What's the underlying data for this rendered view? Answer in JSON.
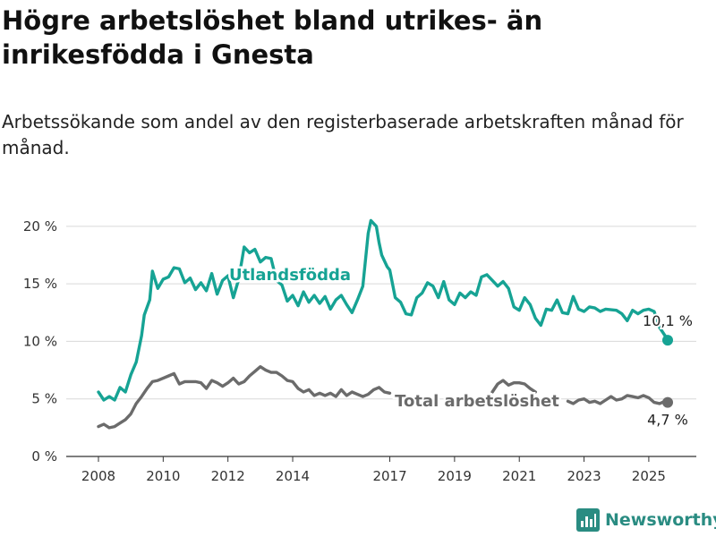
{
  "title": "Högre arbetslöshet bland utrikes- än inrikesfödda i Gnesta",
  "subtitle": "Arbetssökande som andel av den registerbaserade arbetskraften månad för månad.",
  "brand": "Newsworthy",
  "colors": {
    "utlandsfodda": "#16a394",
    "total": "#6b6b6b",
    "grid": "#d9d9d9",
    "brand": "#2a8c82"
  },
  "chart_data": {
    "type": "line",
    "x_start": "2008-01",
    "x_end": "2025-08",
    "ylim": [
      0,
      21
    ],
    "yticks": [
      0,
      5,
      10,
      15,
      20
    ],
    "ytick_labels": [
      "0 %",
      "5 %",
      "10 %",
      "15 %",
      "20 %"
    ],
    "xticks": [
      2008,
      2010,
      2012,
      2014,
      2017,
      2019,
      2021,
      2023,
      2025
    ],
    "xtick_labels": [
      "2008",
      "2010",
      "2012",
      "2014",
      "2017",
      "2019",
      "2021",
      "2023",
      "2025"
    ],
    "grid": true,
    "series": [
      {
        "name": "Utlandsfödda",
        "color": "#16a394",
        "end_label": "10,1 %",
        "points": [
          [
            "2008-01",
            5.6
          ],
          [
            "2008-03",
            4.9
          ],
          [
            "2008-05",
            5.2
          ],
          [
            "2008-07",
            4.9
          ],
          [
            "2008-09",
            6.0
          ],
          [
            "2008-11",
            5.6
          ],
          [
            "2009-01",
            7.1
          ],
          [
            "2009-03",
            8.2
          ],
          [
            "2009-05",
            10.5
          ],
          [
            "2009-06",
            12.3
          ],
          [
            "2009-08",
            13.6
          ],
          [
            "2009-09",
            16.1
          ],
          [
            "2009-11",
            14.6
          ],
          [
            "2010-01",
            15.4
          ],
          [
            "2010-03",
            15.6
          ],
          [
            "2010-05",
            16.4
          ],
          [
            "2010-07",
            16.3
          ],
          [
            "2010-09",
            15.1
          ],
          [
            "2010-11",
            15.5
          ],
          [
            "2011-01",
            14.5
          ],
          [
            "2011-03",
            15.1
          ],
          [
            "2011-05",
            14.4
          ],
          [
            "2011-07",
            15.9
          ],
          [
            "2011-09",
            14.1
          ],
          [
            "2011-11",
            15.3
          ],
          [
            "2012-01",
            15.7
          ],
          [
            "2012-03",
            13.8
          ],
          [
            "2012-05",
            15.4
          ],
          [
            "2012-07",
            18.2
          ],
          [
            "2012-09",
            17.7
          ],
          [
            "2012-11",
            18.0
          ],
          [
            "2013-01",
            16.9
          ],
          [
            "2013-03",
            17.3
          ],
          [
            "2013-05",
            17.2
          ],
          [
            "2013-07",
            15.3
          ],
          [
            "2013-09",
            14.9
          ],
          [
            "2013-11",
            13.5
          ],
          [
            "2014-01",
            14.0
          ],
          [
            "2014-03",
            13.1
          ],
          [
            "2014-05",
            14.3
          ],
          [
            "2014-07",
            13.4
          ],
          [
            "2014-09",
            14.0
          ],
          [
            "2014-11",
            13.3
          ],
          [
            "2015-01",
            13.9
          ],
          [
            "2015-03",
            12.8
          ],
          [
            "2015-05",
            13.6
          ],
          [
            "2015-07",
            14.0
          ],
          [
            "2015-09",
            13.2
          ],
          [
            "2015-11",
            12.5
          ],
          [
            "2016-01",
            13.6
          ],
          [
            "2016-03",
            14.8
          ],
          [
            "2016-05",
            19.4
          ],
          [
            "2016-06",
            20.5
          ],
          [
            "2016-08",
            20.0
          ],
          [
            "2016-09",
            18.6
          ],
          [
            "2016-10",
            17.5
          ],
          [
            "2016-12",
            16.5
          ],
          [
            "2017-01",
            16.2
          ],
          [
            "2017-03",
            13.8
          ],
          [
            "2017-05",
            13.4
          ],
          [
            "2017-07",
            12.4
          ],
          [
            "2017-09",
            12.3
          ],
          [
            "2017-11",
            13.8
          ],
          [
            "2018-01",
            14.2
          ],
          [
            "2018-03",
            15.1
          ],
          [
            "2018-05",
            14.8
          ],
          [
            "2018-07",
            13.8
          ],
          [
            "2018-09",
            15.2
          ],
          [
            "2018-11",
            13.6
          ],
          [
            "2019-01",
            13.2
          ],
          [
            "2019-03",
            14.2
          ],
          [
            "2019-05",
            13.8
          ],
          [
            "2019-07",
            14.3
          ],
          [
            "2019-09",
            14.0
          ],
          [
            "2019-11",
            15.6
          ],
          [
            "2020-01",
            15.8
          ],
          [
            "2020-03",
            15.3
          ],
          [
            "2020-05",
            14.8
          ],
          [
            "2020-07",
            15.2
          ],
          [
            "2020-09",
            14.6
          ],
          [
            "2020-11",
            13.0
          ],
          [
            "2021-01",
            12.7
          ],
          [
            "2021-03",
            13.8
          ],
          [
            "2021-05",
            13.2
          ],
          [
            "2021-07",
            12.0
          ],
          [
            "2021-09",
            11.4
          ],
          [
            "2021-11",
            12.8
          ],
          [
            "2022-01",
            12.7
          ],
          [
            "2022-03",
            13.6
          ],
          [
            "2022-05",
            12.5
          ],
          [
            "2022-07",
            12.4
          ],
          [
            "2022-09",
            13.9
          ],
          [
            "2022-11",
            12.8
          ],
          [
            "2023-01",
            12.6
          ],
          [
            "2023-03",
            13.0
          ],
          [
            "2023-05",
            12.9
          ],
          [
            "2023-07",
            12.6
          ],
          [
            "2023-09",
            12.8
          ],
          [
            "2024-01",
            12.7
          ],
          [
            "2024-03",
            12.4
          ],
          [
            "2024-05",
            11.8
          ],
          [
            "2024-07",
            12.7
          ],
          [
            "2024-09",
            12.4
          ],
          [
            "2024-11",
            12.7
          ],
          [
            "2025-01",
            12.8
          ],
          [
            "2025-03",
            12.6
          ],
          [
            "2025-05",
            11.2
          ],
          [
            "2025-07",
            10.5
          ],
          [
            "2025-08",
            10.1
          ]
        ]
      },
      {
        "name": "Total arbetslöshet",
        "color": "#6b6b6b",
        "end_label": "4,7 %",
        "points": [
          [
            "2008-01",
            2.6
          ],
          [
            "2008-03",
            2.8
          ],
          [
            "2008-05",
            2.5
          ],
          [
            "2008-07",
            2.6
          ],
          [
            "2008-09",
            2.9
          ],
          [
            "2008-11",
            3.2
          ],
          [
            "2009-01",
            3.7
          ],
          [
            "2009-03",
            4.6
          ],
          [
            "2009-05",
            5.2
          ],
          [
            "2009-07",
            5.9
          ],
          [
            "2009-09",
            6.5
          ],
          [
            "2009-11",
            6.6
          ],
          [
            "2010-01",
            6.8
          ],
          [
            "2010-03",
            7.0
          ],
          [
            "2010-05",
            7.2
          ],
          [
            "2010-07",
            6.3
          ],
          [
            "2010-09",
            6.5
          ],
          [
            "2010-11",
            6.5
          ],
          [
            "2011-01",
            6.5
          ],
          [
            "2011-03",
            6.4
          ],
          [
            "2011-05",
            5.9
          ],
          [
            "2011-07",
            6.6
          ],
          [
            "2011-09",
            6.4
          ],
          [
            "2011-11",
            6.1
          ],
          [
            "2012-01",
            6.4
          ],
          [
            "2012-03",
            6.8
          ],
          [
            "2012-05",
            6.3
          ],
          [
            "2012-07",
            6.5
          ],
          [
            "2012-09",
            7.0
          ],
          [
            "2012-11",
            7.4
          ],
          [
            "2013-01",
            7.8
          ],
          [
            "2013-03",
            7.5
          ],
          [
            "2013-05",
            7.3
          ],
          [
            "2013-07",
            7.3
          ],
          [
            "2013-09",
            7.0
          ],
          [
            "2013-11",
            6.6
          ],
          [
            "2014-01",
            6.5
          ],
          [
            "2014-03",
            5.9
          ],
          [
            "2014-05",
            5.6
          ],
          [
            "2014-07",
            5.8
          ],
          [
            "2014-09",
            5.3
          ],
          [
            "2014-11",
            5.5
          ],
          [
            "2015-01",
            5.3
          ],
          [
            "2015-03",
            5.5
          ],
          [
            "2015-05",
            5.2
          ],
          [
            "2015-07",
            5.8
          ],
          [
            "2015-09",
            5.3
          ],
          [
            "2015-11",
            5.6
          ],
          [
            "2016-01",
            5.4
          ],
          [
            "2016-03",
            5.2
          ],
          [
            "2016-05",
            5.4
          ],
          [
            "2016-07",
            5.8
          ],
          [
            "2016-09",
            6.0
          ],
          [
            "2016-11",
            5.6
          ],
          [
            "2017-01",
            5.5
          ],
          [
            "2017-02",
            null
          ],
          [
            "2020-03",
            5.6
          ],
          [
            "2020-05",
            6.3
          ],
          [
            "2020-07",
            6.6
          ],
          [
            "2020-09",
            6.2
          ],
          [
            "2020-11",
            6.4
          ],
          [
            "2021-01",
            6.4
          ],
          [
            "2021-03",
            6.3
          ],
          [
            "2021-05",
            5.9
          ],
          [
            "2021-07",
            5.6
          ],
          [
            "2021-08",
            null
          ],
          [
            "2021-12",
            5.7
          ],
          [
            "2022-01",
            null
          ],
          [
            "2022-07",
            4.8
          ],
          [
            "2022-09",
            4.6
          ],
          [
            "2022-11",
            4.9
          ],
          [
            "2023-01",
            5.0
          ],
          [
            "2023-03",
            4.7
          ],
          [
            "2023-05",
            4.8
          ],
          [
            "2023-07",
            4.6
          ],
          [
            "2023-09",
            4.9
          ],
          [
            "2023-11",
            5.2
          ],
          [
            "2024-01",
            4.9
          ],
          [
            "2024-03",
            5.0
          ],
          [
            "2024-05",
            5.3
          ],
          [
            "2024-07",
            5.2
          ],
          [
            "2024-09",
            5.1
          ],
          [
            "2024-11",
            5.3
          ],
          [
            "2025-01",
            5.1
          ],
          [
            "2025-03",
            4.7
          ],
          [
            "2025-05",
            4.6
          ],
          [
            "2025-07",
            4.8
          ],
          [
            "2025-08",
            4.7
          ]
        ]
      }
    ]
  }
}
